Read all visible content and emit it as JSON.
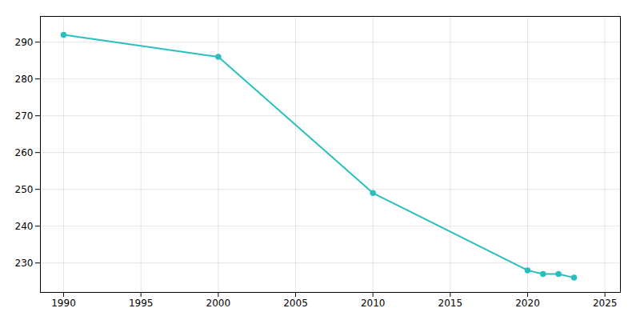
{
  "chart_data": {
    "type": "line",
    "x": [
      1990,
      2000,
      2010,
      2020,
      2021,
      2022,
      2023
    ],
    "values": [
      292,
      286,
      249,
      228,
      227,
      227,
      226
    ],
    "color": "#2ABFBF",
    "marker": "circle",
    "xlim": [
      1988.5,
      2026
    ],
    "ylim": [
      222,
      297
    ],
    "xticks": [
      1990,
      1995,
      2000,
      2005,
      2010,
      2015,
      2020,
      2025
    ],
    "yticks": [
      230,
      240,
      250,
      260,
      270,
      280,
      290
    ],
    "grid": true
  }
}
